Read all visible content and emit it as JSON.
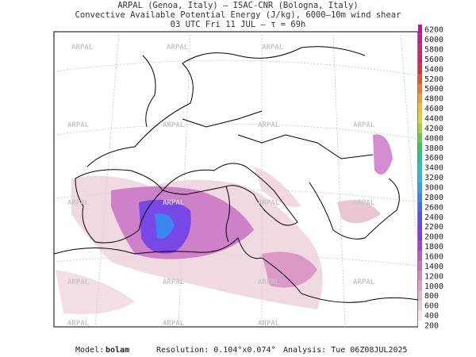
{
  "header": {
    "line1": "ARPAL (Genoa, Italy)  —  ISAC-CNR (Bologna, Italy)",
    "line2": "Convective Available Potential Energy (J/kg), 6000–10m wind shear",
    "line3": "03 UTC Fri 11 JUL  –  τ = 69h"
  },
  "watermark": "ARPAL",
  "colorbar": {
    "ticks": [
      200,
      400,
      600,
      800,
      1000,
      1200,
      1400,
      1600,
      1800,
      2000,
      2200,
      2400,
      2600,
      2800,
      3000,
      3200,
      3400,
      3600,
      3800,
      4000,
      4200,
      4400,
      4600,
      4800,
      5000,
      5200,
      5400,
      5600,
      5800,
      6000,
      6200
    ],
    "colors": [
      "#ffffff",
      "#f5e6ea",
      "#ecd0d8",
      "#e4b8c6",
      "#dca0c0",
      "#d488c0",
      "#c870c4",
      "#b858cc",
      "#a040d8",
      "#8838e0",
      "#7040e8",
      "#5850f0",
      "#4868f0",
      "#3c84f0",
      "#30a0f0",
      "#28b8e8",
      "#20c8c0",
      "#20c890",
      "#30c860",
      "#60d040",
      "#a0d830",
      "#d8d830",
      "#f0c030",
      "#f0a030",
      "#f07830",
      "#e85030",
      "#e03040",
      "#d82060",
      "#d02080",
      "#c81898",
      "#c010b0"
    ]
  },
  "footer": {
    "model_label": "Model:",
    "model": "bolam",
    "resolution": "Resolution: 0.104°x0.074°",
    "analysis": "Analysis: Tue 06Z08JUL2025"
  }
}
